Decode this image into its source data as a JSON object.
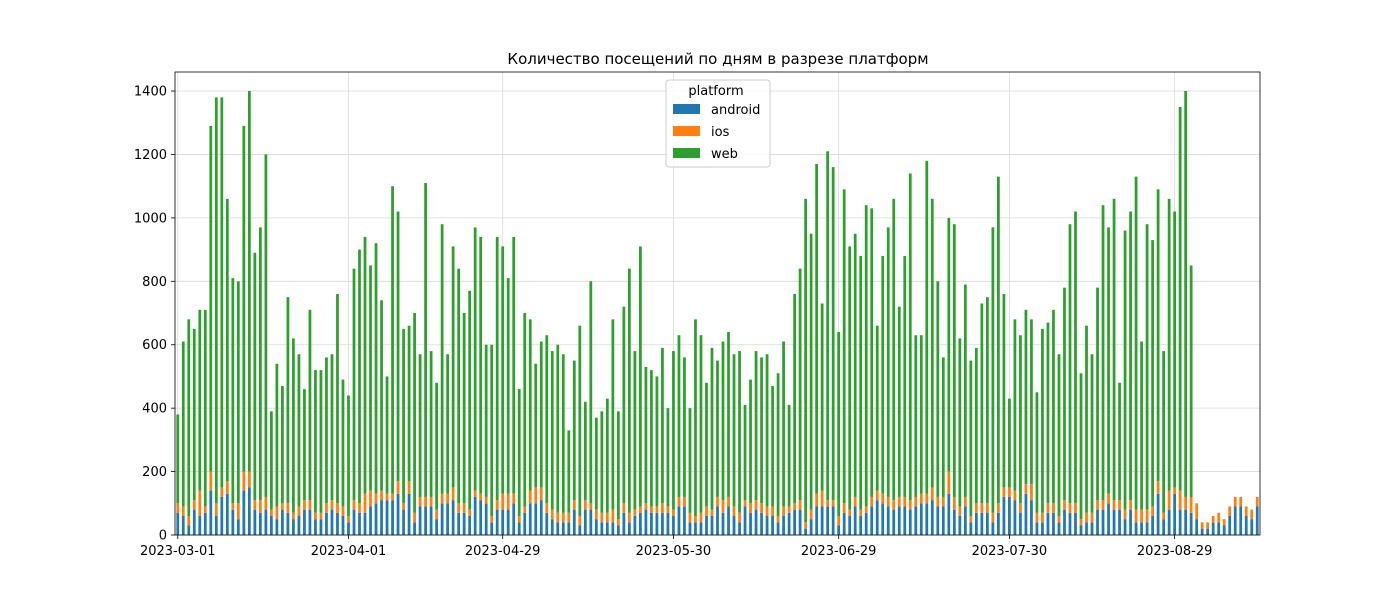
{
  "chart_data": {
    "type": "bar",
    "stacked": true,
    "title": "Количество посещений по дням в разрезе платформ",
    "xlabel": "",
    "ylabel": "",
    "ylim": [
      0,
      1460
    ],
    "yticks": [
      0,
      200,
      400,
      600,
      800,
      1000,
      1200,
      1400
    ],
    "grid": true,
    "legend": {
      "title": "platform",
      "placement": "top-center"
    },
    "x_start": "2023-03-01",
    "xtick_labels": [
      "2023-03-01",
      "2023-04-01",
      "2023-04-29",
      "2023-05-30",
      "2023-06-29",
      "2023-07-30",
      "2023-08-29"
    ],
    "xtick_indices": [
      0,
      31,
      59,
      90,
      120,
      151,
      181
    ],
    "series": [
      {
        "name": "android",
        "color": "#1f77b4",
        "values": [
          70,
          60,
          30,
          80,
          60,
          70,
          140,
          60,
          120,
          130,
          80,
          50,
          140,
          150,
          80,
          70,
          80,
          60,
          50,
          80,
          70,
          50,
          60,
          80,
          80,
          50,
          50,
          70,
          80,
          70,
          60,
          40,
          80,
          70,
          70,
          90,
          100,
          110,
          110,
          110,
          130,
          80,
          130,
          40,
          90,
          90,
          90,
          50,
          100,
          100,
          110,
          70,
          70,
          60,
          120,
          110,
          100,
          40,
          80,
          80,
          80,
          100,
          40,
          70,
          100,
          100,
          110,
          70,
          50,
          40,
          40,
          40,
          80,
          30,
          80,
          80,
          50,
          40,
          40,
          40,
          30,
          70,
          40,
          60,
          70,
          80,
          70,
          70,
          70,
          70,
          60,
          90,
          90,
          40,
          40,
          40,
          60,
          60,
          90,
          70,
          90,
          60,
          40,
          90,
          70,
          80,
          70,
          60,
          60,
          40,
          60,
          70,
          80,
          80,
          20,
          50,
          90,
          90,
          90,
          90,
          30,
          70,
          60,
          90,
          60,
          70,
          90,
          110,
          100,
          90,
          80,
          90,
          90,
          80,
          90,
          100,
          100,
          110,
          90,
          90,
          130,
          80,
          60,
          90,
          40,
          70,
          70,
          70,
          40,
          70,
          120,
          120,
          110,
          70,
          130,
          110,
          40,
          40,
          70,
          70,
          40,
          80,
          70,
          70,
          30,
          40,
          40,
          80,
          80,
          100,
          80,
          80,
          50,
          80,
          40,
          40,
          40,
          60,
          130,
          50,
          80,
          130,
          80,
          80,
          70,
          50,
          20,
          20,
          40,
          40,
          30,
          60,
          90,
          90,
          60,
          50,
          90
        ]
      },
      {
        "name": "ios",
        "color": "#ff7f0e",
        "values": [
          30,
          30,
          30,
          30,
          80,
          20,
          60,
          40,
          30,
          40,
          20,
          50,
          60,
          50,
          30,
          40,
          40,
          20,
          40,
          20,
          30,
          20,
          30,
          30,
          30,
          20,
          20,
          30,
          30,
          30,
          30,
          20,
          30,
          30,
          60,
          50,
          30,
          30,
          20,
          20,
          40,
          20,
          40,
          30,
          30,
          30,
          30,
          30,
          30,
          30,
          40,
          30,
          30,
          20,
          20,
          20,
          20,
          20,
          30,
          50,
          50,
          30,
          20,
          20,
          40,
          50,
          40,
          30,
          30,
          30,
          30,
          30,
          30,
          30,
          30,
          20,
          30,
          30,
          30,
          40,
          20,
          30,
          30,
          20,
          20,
          20,
          20,
          20,
          30,
          20,
          20,
          30,
          30,
          30,
          20,
          30,
          30,
          20,
          30,
          40,
          30,
          30,
          30,
          20,
          30,
          30,
          30,
          30,
          30,
          20,
          30,
          20,
          20,
          30,
          20,
          30,
          40,
          50,
          20,
          20,
          30,
          30,
          20,
          30,
          20,
          20,
          30,
          30,
          30,
          30,
          30,
          30,
          30,
          30,
          30,
          30,
          30,
          40,
          30,
          30,
          70,
          40,
          30,
          30,
          20,
          30,
          30,
          30,
          30,
          30,
          30,
          30,
          30,
          30,
          30,
          50,
          30,
          30,
          30,
          30,
          20,
          30,
          30,
          30,
          20,
          30,
          30,
          30,
          30,
          30,
          30,
          30,
          30,
          30,
          40,
          40,
          40,
          30,
          40,
          20,
          60,
          20,
          60,
          40,
          50,
          50,
          20,
          20,
          20,
          30,
          20,
          30,
          30,
          30,
          30,
          30,
          30
        ]
      },
      {
        "name": "web",
        "color": "#2ca02c",
        "values": [
          280,
          520,
          620,
          540,
          570,
          620,
          1090,
          1280,
          1230,
          890,
          710,
          700,
          1090,
          1200,
          780,
          860,
          1080,
          310,
          450,
          370,
          650,
          550,
          480,
          350,
          600,
          450,
          450,
          460,
          460,
          660,
          400,
          380,
          730,
          800,
          810,
          710,
          790,
          600,
          370,
          970,
          850,
          550,
          490,
          630,
          450,
          990,
          460,
          400,
          850,
          440,
          760,
          740,
          600,
          690,
          830,
          810,
          480,
          540,
          830,
          780,
          680,
          810,
          400,
          610,
          540,
          390,
          460,
          530,
          500,
          530,
          500,
          260,
          440,
          600,
          310,
          700,
          290,
          320,
          360,
          600,
          340,
          620,
          770,
          500,
          820,
          430,
          430,
          410,
          490,
          310,
          500,
          510,
          440,
          330,
          620,
          560,
          390,
          510,
          430,
          500,
          520,
          480,
          510,
          300,
          390,
          470,
          460,
          480,
          380,
          450,
          520,
          320,
          660,
          730,
          1020,
          870,
          1040,
          590,
          1100,
          1050,
          580,
          990,
          830,
          830,
          800,
          950,
          910,
          520,
          750,
          850,
          950,
          600,
          760,
          1030,
          510,
          500,
          1050,
          910,
          680,
          440,
          800,
          860,
          530,
          670,
          490,
          490,
          630,
          650,
          900,
          1030,
          610,
          280,
          540,
          530,
          550,
          520,
          380,
          580,
          570,
          610,
          510,
          670,
          880,
          920,
          460,
          590,
          500,
          670,
          930,
          840,
          950,
          370,
          880,
          910,
          1050,
          530,
          900,
          840,
          920,
          510,
          920,
          870,
          1210,
          1280,
          730
        ]
      }
    ]
  }
}
